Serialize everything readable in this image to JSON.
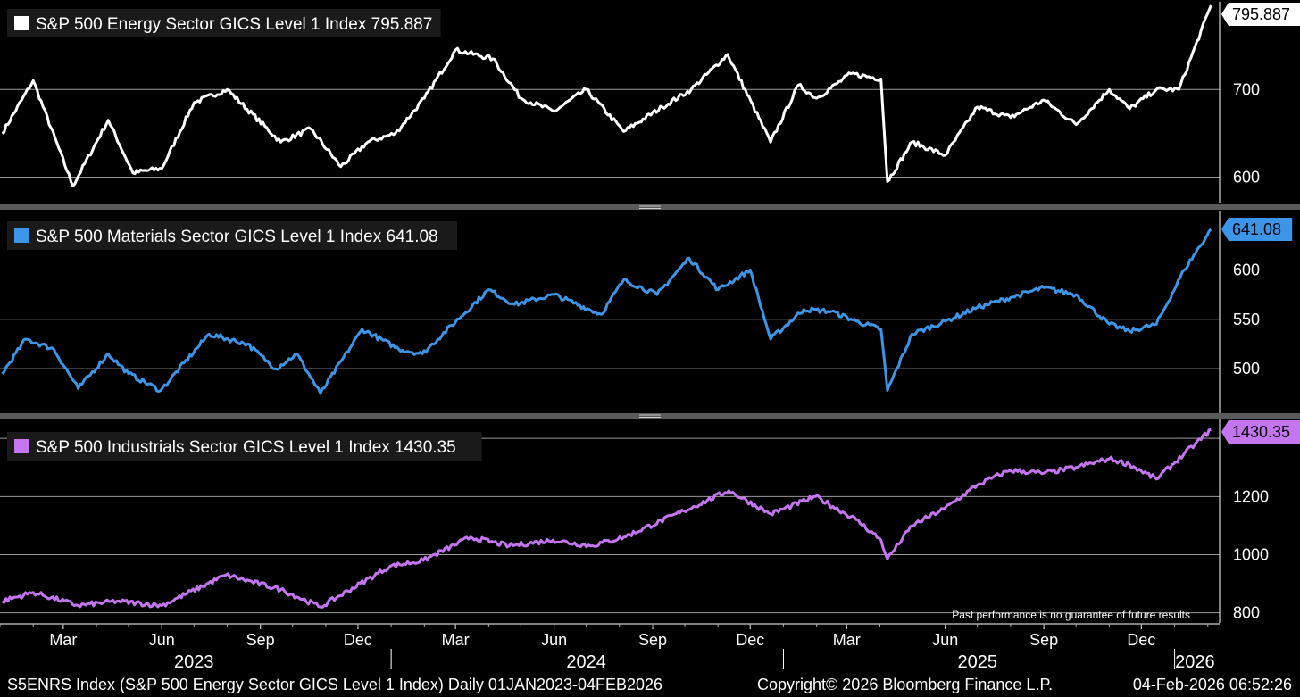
{
  "chart_data": [
    {
      "type": "line",
      "title": "S&P 500 Energy Sector GICS Level 1 Index 795.887",
      "series": [
        {
          "name": "S&P 500 Energy Sector GICS Level 1 Index",
          "color": "#ffffff",
          "x": [
            "2023-01-03",
            "2023-02-01",
            "2023-03-10",
            "2023-04-12",
            "2023-05-05",
            "2023-06-01",
            "2023-07-01",
            "2023-08-01",
            "2023-09-20",
            "2023-10-18",
            "2023-11-15",
            "2023-12-10",
            "2024-01-05",
            "2024-02-01",
            "2024-03-01",
            "2024-04-05",
            "2024-05-01",
            "2024-06-01",
            "2024-07-01",
            "2024-08-05",
            "2024-09-10",
            "2024-10-07",
            "2024-11-10",
            "2024-12-20",
            "2025-01-15",
            "2025-02-01",
            "2025-03-05",
            "2025-04-02",
            "2025-04-08",
            "2025-05-01",
            "2025-06-01",
            "2025-07-01",
            "2025-08-01",
            "2025-09-01",
            "2025-10-01",
            "2025-11-01",
            "2025-11-20",
            "2025-12-15",
            "2026-01-05",
            "2026-02-04"
          ],
          "y": [
            650,
            710,
            590,
            665,
            605,
            610,
            685,
            700,
            640,
            655,
            612,
            640,
            650,
            690,
            745,
            735,
            690,
            675,
            700,
            652,
            680,
            700,
            740,
            640,
            705,
            690,
            718,
            712,
            595,
            640,
            625,
            680,
            668,
            688,
            660,
            700,
            678,
            700,
            700,
            795.887
          ]
        }
      ],
      "ylim": [
        570,
        800
      ],
      "ticks": [
        600,
        700
      ],
      "last_label": "795.887"
    },
    {
      "type": "line",
      "title": "S&P 500 Materials Sector GICS Level 1 Index 641.08",
      "series": [
        {
          "name": "S&P 500 Materials Sector GICS Level 1 Index",
          "color": "#3d95e8",
          "x": [
            "2023-01-03",
            "2023-01-25",
            "2023-02-20",
            "2023-03-15",
            "2023-04-12",
            "2023-05-01",
            "2023-05-31",
            "2023-07-15",
            "2023-08-20",
            "2023-09-15",
            "2023-10-05",
            "2023-10-27",
            "2023-12-05",
            "2024-01-08",
            "2024-01-30",
            "2024-04-01",
            "2024-04-25",
            "2024-06-01",
            "2024-07-15",
            "2024-08-05",
            "2024-09-05",
            "2024-10-05",
            "2024-11-01",
            "2024-12-01",
            "2024-12-20",
            "2025-01-20",
            "2025-02-15",
            "2025-03-10",
            "2025-04-02",
            "2025-04-08",
            "2025-05-01",
            "2025-06-01",
            "2025-07-01",
            "2025-08-01",
            "2025-09-01",
            "2025-10-01",
            "2025-11-01",
            "2025-11-20",
            "2025-12-15",
            "2026-01-10",
            "2026-02-04"
          ],
          "y": [
            495,
            530,
            520,
            480,
            515,
            495,
            478,
            535,
            525,
            500,
            515,
            475,
            540,
            520,
            515,
            580,
            565,
            575,
            555,
            590,
            575,
            612,
            580,
            600,
            530,
            560,
            558,
            548,
            540,
            478,
            535,
            548,
            562,
            572,
            582,
            575,
            545,
            538,
            545,
            600,
            641.08
          ]
        }
      ],
      "ylim": [
        455,
        660
      ],
      "ticks": [
        500,
        550,
        600
      ],
      "last_label": "641.08"
    },
    {
      "type": "line",
      "title": "S&P 500 Industrials Sector GICS Level 1 Index 1430.35",
      "series": [
        {
          "name": "S&P 500 Industrials Sector GICS Level 1 Index",
          "color": "#c475f0",
          "x": [
            "2023-01-03",
            "2023-02-01",
            "2023-03-15",
            "2023-04-20",
            "2023-06-01",
            "2023-07-31",
            "2023-09-20",
            "2023-10-27",
            "2023-12-31",
            "2024-01-31",
            "2024-03-15",
            "2024-04-20",
            "2024-05-31",
            "2024-07-05",
            "2024-08-05",
            "2024-09-30",
            "2024-11-11",
            "2024-12-20",
            "2025-01-31",
            "2025-03-10",
            "2025-04-02",
            "2025-04-08",
            "2025-05-01",
            "2025-06-01",
            "2025-07-01",
            "2025-07-31",
            "2025-09-01",
            "2025-10-01",
            "2025-11-01",
            "2025-11-20",
            "2025-12-15",
            "2026-01-20",
            "2026-02-04"
          ],
          "y": [
            840,
            870,
            825,
            840,
            825,
            930,
            880,
            820,
            960,
            980,
            1060,
            1030,
            1050,
            1030,
            1060,
            1150,
            1220,
            1140,
            1200,
            1120,
            1050,
            985,
            1100,
            1160,
            1240,
            1290,
            1280,
            1300,
            1330,
            1310,
            1260,
            1380,
            1430.35
          ]
        }
      ],
      "ylim": [
        765,
        1465
      ],
      "ticks": [
        800,
        1000,
        1200,
        1400
      ],
      "last_label": "1430.35"
    }
  ],
  "x_axis": {
    "months": [
      {
        "label": "Mar",
        "date": "2023-03-01"
      },
      {
        "label": "Jun",
        "date": "2023-06-01"
      },
      {
        "label": "Sep",
        "date": "2023-09-01"
      },
      {
        "label": "Dec",
        "date": "2023-12-01"
      },
      {
        "label": "Mar",
        "date": "2024-03-01"
      },
      {
        "label": "Jun",
        "date": "2024-06-01"
      },
      {
        "label": "Sep",
        "date": "2024-09-01"
      },
      {
        "label": "Dec",
        "date": "2024-12-01"
      },
      {
        "label": "Mar",
        "date": "2025-03-01"
      },
      {
        "label": "Jun",
        "date": "2025-06-01"
      },
      {
        "label": "Sep",
        "date": "2025-09-01"
      },
      {
        "label": "Dec",
        "date": "2025-12-01"
      }
    ],
    "years": [
      {
        "label": "2023",
        "date": "2023-07-01"
      },
      {
        "label": "2024",
        "date": "2024-07-01"
      },
      {
        "label": "2025",
        "date": "2025-07-01"
      },
      {
        "label": "2026",
        "date": "2026-01-20"
      }
    ],
    "year_dividers": [
      "2024-01-01",
      "2025-01-01",
      "2026-01-01"
    ]
  },
  "footer": {
    "left": "S5ENRS Index (S&P 500 Energy Sector GICS Level 1 Index) Daily 01JAN2023-04FEB2026",
    "middle": "Copyright© 2026 Bloomberg Finance L.P.",
    "right": "04-Feb-2026 06:52:26"
  },
  "disclaimer": "Past performance is no guarantee of future results",
  "colors": {
    "background": "#000000",
    "grid": "#9a9a9a",
    "panel_divider": "#5a5a5a"
  }
}
